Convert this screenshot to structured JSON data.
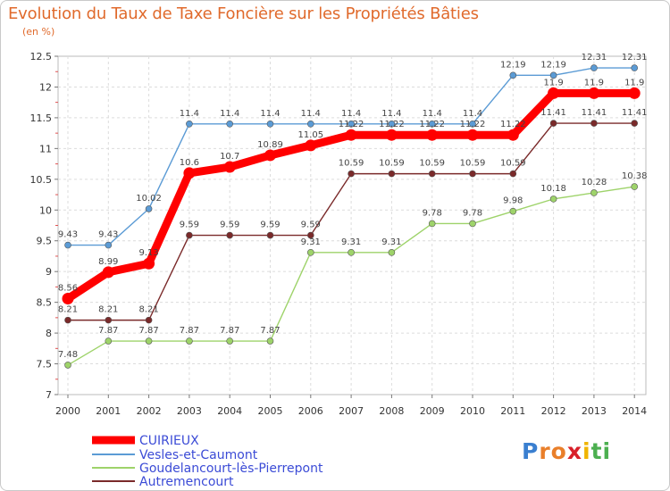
{
  "header": {
    "title": "Evolution du Taux de Taxe Foncière sur les Propriétés Bâties",
    "unit": "(en %)"
  },
  "brand": {
    "letters": [
      "P",
      "r",
      "o",
      "x",
      "i",
      "t",
      "i"
    ],
    "colors": [
      "#3a7fd0",
      "#e97f2a",
      "#e97f2a",
      "#d8202a",
      "#f0b400",
      "#4caf50",
      "#4caf50"
    ]
  },
  "chart_data": {
    "type": "line",
    "title": "Evolution du Taux de Taxe Foncière sur les Propriétés Bâties",
    "ylabel": "(en %)",
    "xlabel": "",
    "x": [
      "2000",
      "2001",
      "2002",
      "2003",
      "2004",
      "2005",
      "2006",
      "2007",
      "2008",
      "2009",
      "2010",
      "2011",
      "2012",
      "2013",
      "2014"
    ],
    "ylim": [
      7,
      12.5
    ],
    "yticks": [
      "7",
      "7.5",
      "8",
      "8.5",
      "9",
      "9.5",
      "10",
      "10.5",
      "11",
      "11.5",
      "12",
      "12.5"
    ],
    "grid": true,
    "legend_position": "bottom-left",
    "series": [
      {
        "name": "CUIRIEUX",
        "color": "#ff0000",
        "emphasis": true,
        "values": [
          8.56,
          8.99,
          9.13,
          10.6,
          10.7,
          10.89,
          11.05,
          11.22,
          11.22,
          11.22,
          11.22,
          11.22,
          11.9,
          11.9,
          11.9
        ],
        "labels": [
          "8.56",
          "8.99",
          "9.13",
          "10.6",
          "10.7",
          "10.89",
          "11.05",
          "11.22",
          "11.22",
          "11.22",
          "11.22",
          "11.22",
          "11.9",
          "11.9",
          "11.9"
        ]
      },
      {
        "name": "Vesles-et-Caumont",
        "color": "#5b9bd5",
        "emphasis": false,
        "values": [
          9.43,
          9.43,
          10.02,
          11.4,
          11.4,
          11.4,
          11.4,
          11.4,
          11.4,
          11.4,
          11.4,
          12.19,
          12.19,
          12.31,
          12.31
        ],
        "labels": [
          "9.43",
          "9.43",
          "10.02",
          "11.4",
          "11.4",
          "11.4",
          "11.4",
          "11.4",
          "11.4",
          "11.4",
          "11.4",
          "12.19",
          "12.19",
          "12.31",
          "12.31"
        ]
      },
      {
        "name": "Goudelancourt-lès-Pierrepont",
        "color": "#9ed36a",
        "emphasis": false,
        "values": [
          7.48,
          7.87,
          7.87,
          7.87,
          7.87,
          7.87,
          9.31,
          9.31,
          9.31,
          9.78,
          9.78,
          9.98,
          10.18,
          10.28,
          10.38
        ],
        "labels": [
          "7.48",
          "7.87",
          "7.87",
          "7.87",
          "7.87",
          "7.87",
          "9.31",
          "9.31",
          "9.31",
          "9.78",
          "9.78",
          "9.98",
          "10.18",
          "10.28",
          "10.38"
        ]
      },
      {
        "name": "Autremencourt",
        "color": "#7a2a2a",
        "emphasis": false,
        "values": [
          8.21,
          8.21,
          8.21,
          9.59,
          9.59,
          9.59,
          9.59,
          10.59,
          10.59,
          10.59,
          10.59,
          10.59,
          11.41,
          11.41,
          11.41
        ],
        "labels": [
          "8.21",
          "8.21",
          "8.21",
          "9.59",
          "9.59",
          "9.59",
          "9.59",
          "10.59",
          "10.59",
          "10.59",
          "10.59",
          "10.59",
          "11.41",
          "11.41",
          "11.41"
        ]
      }
    ]
  }
}
